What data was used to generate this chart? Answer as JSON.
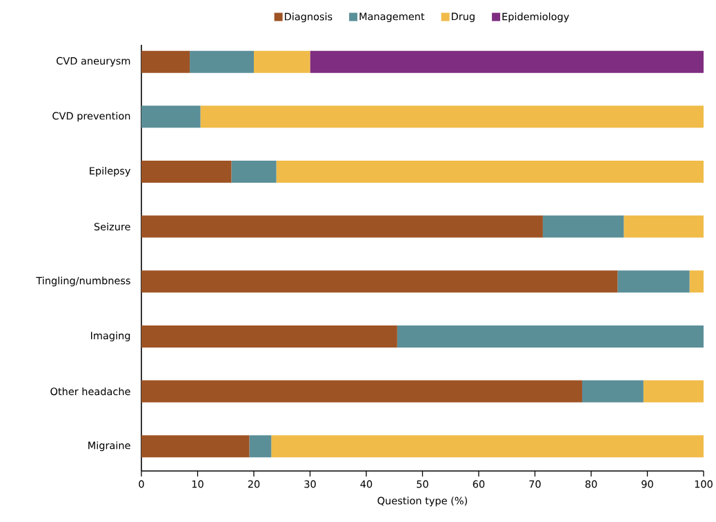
{
  "chart_data": {
    "type": "bar",
    "orientation": "horizontal",
    "stacked": true,
    "xlabel": "Question type (%)",
    "categories": [
      "CVD aneurysm",
      "CVD prevention",
      "Epilepsy",
      "Seizure",
      "Tingling/numbness",
      "Imaging",
      "Other headache",
      "Migraine"
    ],
    "series": [
      {
        "name": "Diagnosis",
        "color": "#9e5325",
        "values": [
          8.6,
          0,
          16.0,
          71.4,
          84.7,
          45.5,
          78.4,
          19.2
        ]
      },
      {
        "name": "Management",
        "color": "#5a8f98",
        "values": [
          11.4,
          10.5,
          8.0,
          14.4,
          12.8,
          54.5,
          10.9,
          3.9
        ]
      },
      {
        "name": "Drug",
        "color": "#f0bb48",
        "values": [
          10.0,
          89.5,
          76.0,
          14.2,
          2.5,
          0,
          10.7,
          76.9
        ]
      },
      {
        "name": "Epidemiology",
        "color": "#7f2d80",
        "values": [
          70.0,
          0,
          0,
          0,
          0,
          0,
          0,
          0
        ]
      }
    ],
    "xlim": [
      0,
      100
    ],
    "xticks": [
      0,
      10,
      20,
      30,
      40,
      50,
      60,
      70,
      80,
      90,
      100
    ],
    "grid": false,
    "legend": "top"
  }
}
